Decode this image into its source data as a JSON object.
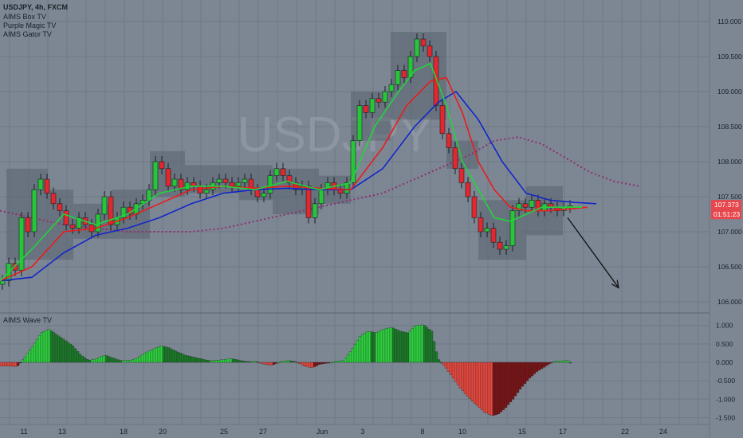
{
  "header": {
    "symbol_line": "USDJPY, 4h, FXCM",
    "indicators": [
      "AIMS Box TV",
      "Purple Magic TV",
      "AIMS Gator TV"
    ]
  },
  "watermark": "USDJPY",
  "lower_pane": {
    "title": "AIMS Wave TV"
  },
  "colors": {
    "background": "#7d8794",
    "up_candle": "#28c43a",
    "down_candle": "#e0282e",
    "gator_fast": "#22d43c",
    "gator_mid": "#e81c1c",
    "gator_slow": "#1226c8",
    "purple": "#8e2d6e",
    "box": "#5a636e",
    "wave_pos": "#2ed13e",
    "wave_neg": "#e5483e"
  },
  "price_badges": {
    "price": "107.373",
    "timer": "01:51:23",
    "bg": "#e8454c"
  },
  "chart_data": [
    {
      "type": "candlestick",
      "title": "",
      "y_ticks": [
        110.0,
        109.5,
        109.0,
        108.5,
        108.0,
        107.5,
        107.0,
        106.5,
        106.0
      ],
      "y_tick_labels": [
        "110.000",
        "109.500",
        "109.000",
        "108.500",
        "108.000",
        "107.500",
        "107.000",
        "106.500",
        "106.000"
      ],
      "ylim": [
        105.85,
        110.15
      ],
      "x_tick_labels": [
        "11",
        "13",
        "18",
        "20",
        "25",
        "27",
        "Jun",
        "3",
        "8",
        "10",
        "15",
        "17",
        "22",
        "24"
      ],
      "current_price": 107.373,
      "candles_close_path": [
        [
          0,
          106.3
        ],
        [
          8,
          106.55
        ],
        [
          16,
          106.45
        ],
        [
          24,
          107.2
        ],
        [
          32,
          107.0
        ],
        [
          40,
          107.6
        ],
        [
          48,
          107.75
        ],
        [
          56,
          107.55
        ],
        [
          64,
          107.4
        ],
        [
          72,
          107.3
        ],
        [
          80,
          107.1
        ],
        [
          88,
          107.05
        ],
        [
          96,
          107.2
        ],
        [
          104,
          107.1
        ],
        [
          112,
          107.0
        ],
        [
          120,
          107.25
        ],
        [
          128,
          107.5
        ],
        [
          136,
          107.1
        ],
        [
          144,
          107.2
        ],
        [
          152,
          107.35
        ],
        [
          160,
          107.25
        ],
        [
          168,
          107.4
        ],
        [
          176,
          107.45
        ],
        [
          184,
          107.6
        ],
        [
          192,
          108.0
        ],
        [
          200,
          107.9
        ],
        [
          208,
          107.65
        ],
        [
          216,
          107.75
        ],
        [
          224,
          107.6
        ],
        [
          232,
          107.7
        ],
        [
          240,
          107.65
        ],
        [
          248,
          107.55
        ],
        [
          256,
          107.6
        ],
        [
          264,
          107.7
        ],
        [
          272,
          107.75
        ],
        [
          280,
          107.7
        ],
        [
          288,
          107.65
        ],
        [
          296,
          107.7
        ],
        [
          304,
          107.75
        ],
        [
          312,
          107.6
        ],
        [
          320,
          107.5
        ],
        [
          328,
          107.55
        ],
        [
          336,
          107.8
        ],
        [
          344,
          107.9
        ],
        [
          352,
          107.8
        ],
        [
          360,
          107.7
        ],
        [
          368,
          107.6
        ],
        [
          376,
          107.65
        ],
        [
          384,
          107.2
        ],
        [
          392,
          107.4
        ],
        [
          400,
          107.6
        ],
        [
          408,
          107.7
        ],
        [
          416,
          107.6
        ],
        [
          424,
          107.55
        ],
        [
          432,
          107.7
        ],
        [
          440,
          108.3
        ],
        [
          448,
          108.8
        ],
        [
          456,
          108.7
        ],
        [
          464,
          108.9
        ],
        [
          472,
          108.85
        ],
        [
          480,
          109.0
        ],
        [
          488,
          109.1
        ],
        [
          496,
          109.3
        ],
        [
          504,
          109.2
        ],
        [
          512,
          109.5
        ],
        [
          520,
          109.75
        ],
        [
          528,
          109.65
        ],
        [
          536,
          109.5
        ],
        [
          544,
          108.8
        ],
        [
          552,
          108.4
        ],
        [
          560,
          108.2
        ],
        [
          568,
          107.9
        ],
        [
          576,
          107.7
        ],
        [
          584,
          107.5
        ],
        [
          592,
          107.2
        ],
        [
          600,
          107.0
        ],
        [
          608,
          107.05
        ],
        [
          616,
          106.85
        ],
        [
          624,
          106.75
        ],
        [
          632,
          106.8
        ],
        [
          640,
          107.3
        ],
        [
          648,
          107.4
        ],
        [
          656,
          107.35
        ],
        [
          664,
          107.45
        ],
        [
          672,
          107.3
        ],
        [
          680,
          107.4
        ],
        [
          688,
          107.35
        ],
        [
          696,
          107.3
        ],
        [
          704,
          107.35
        ],
        [
          712,
          107.373
        ]
      ],
      "gator_fast": [
        [
          0,
          106.3
        ],
        [
          40,
          106.75
        ],
        [
          80,
          107.25
        ],
        [
          120,
          107.1
        ],
        [
          160,
          107.25
        ],
        [
          200,
          107.55
        ],
        [
          240,
          107.65
        ],
        [
          280,
          107.65
        ],
        [
          320,
          107.6
        ],
        [
          360,
          107.72
        ],
        [
          400,
          107.6
        ],
        [
          440,
          107.7
        ],
        [
          470,
          108.5
        ],
        [
          500,
          109.0
        ],
        [
          520,
          109.3
        ],
        [
          540,
          109.4
        ],
        [
          560,
          108.8
        ],
        [
          580,
          108.0
        ],
        [
          600,
          107.6
        ],
        [
          620,
          107.2
        ],
        [
          640,
          107.15
        ],
        [
          660,
          107.25
        ],
        [
          680,
          107.35
        ],
        [
          700,
          107.35
        ],
        [
          730,
          107.35
        ]
      ],
      "gator_mid": [
        [
          0,
          106.3
        ],
        [
          40,
          106.5
        ],
        [
          80,
          107.0
        ],
        [
          120,
          107.05
        ],
        [
          160,
          107.2
        ],
        [
          200,
          107.4
        ],
        [
          240,
          107.6
        ],
        [
          280,
          107.65
        ],
        [
          320,
          107.62
        ],
        [
          360,
          107.65
        ],
        [
          400,
          107.62
        ],
        [
          440,
          107.6
        ],
        [
          480,
          108.2
        ],
        [
          510,
          108.8
        ],
        [
          540,
          109.15
        ],
        [
          560,
          109.2
        ],
        [
          580,
          108.7
        ],
        [
          600,
          108.0
        ],
        [
          620,
          107.6
        ],
        [
          640,
          107.35
        ],
        [
          660,
          107.3
        ],
        [
          690,
          107.3
        ],
        [
          710,
          107.32
        ],
        [
          737,
          107.35
        ]
      ],
      "gator_slow": [
        [
          0,
          106.3
        ],
        [
          40,
          106.35
        ],
        [
          80,
          106.7
        ],
        [
          120,
          106.95
        ],
        [
          160,
          107.05
        ],
        [
          200,
          107.2
        ],
        [
          240,
          107.4
        ],
        [
          280,
          107.55
        ],
        [
          320,
          107.6
        ],
        [
          360,
          107.62
        ],
        [
          400,
          107.6
        ],
        [
          440,
          107.6
        ],
        [
          480,
          107.9
        ],
        [
          520,
          108.5
        ],
        [
          550,
          108.85
        ],
        [
          572,
          109.0
        ],
        [
          600,
          108.6
        ],
        [
          630,
          108.0
        ],
        [
          660,
          107.55
        ],
        [
          690,
          107.45
        ],
        [
          720,
          107.42
        ],
        [
          748,
          107.4
        ]
      ],
      "purple_line": [
        [
          0,
          107.3
        ],
        [
          40,
          107.2
        ],
        [
          80,
          107.1
        ],
        [
          120,
          107.05
        ],
        [
          160,
          107.0
        ],
        [
          200,
          107.0
        ],
        [
          240,
          107.0
        ],
        [
          280,
          107.05
        ],
        [
          320,
          107.15
        ],
        [
          360,
          107.25
        ],
        [
          400,
          107.35
        ],
        [
          440,
          107.45
        ],
        [
          480,
          107.55
        ],
        [
          520,
          107.75
        ],
        [
          560,
          107.95
        ],
        [
          590,
          108.1
        ],
        [
          620,
          108.3
        ],
        [
          650,
          108.35
        ],
        [
          680,
          108.25
        ],
        [
          710,
          108.05
        ],
        [
          740,
          107.85
        ],
        [
          770,
          107.72
        ],
        [
          802,
          107.65
        ]
      ],
      "boxes": [
        [
          8,
          60,
          106.6,
          107.9
        ],
        [
          60,
          92,
          106.6,
          107.6
        ],
        [
          92,
          140,
          106.9,
          107.4
        ],
        [
          140,
          188,
          106.9,
          107.6
        ],
        [
          188,
          232,
          107.5,
          108.15
        ],
        [
          232,
          300,
          107.55,
          107.95
        ],
        [
          300,
          342,
          107.45,
          107.95
        ],
        [
          342,
          400,
          107.25,
          107.9
        ],
        [
          400,
          440,
          107.4,
          107.8
        ],
        [
          440,
          490,
          108.3,
          109.0
        ],
        [
          490,
          560,
          108.6,
          109.85
        ],
        [
          560,
          600,
          107.9,
          108.3
        ],
        [
          600,
          660,
          106.6,
          107.45
        ],
        [
          660,
          706,
          106.95,
          107.65
        ]
      ],
      "arrow": {
        "from": [
          712,
          107.2
        ],
        "to": [
          776,
          106.2
        ]
      }
    },
    {
      "type": "bar",
      "title": "AIMS Wave TV",
      "y_ticks": [
        1.0,
        0.5,
        0.0,
        -0.5,
        -1.0,
        -1.5
      ],
      "y_tick_labels": [
        "1.000",
        "0.500",
        "0.000",
        "-0.500",
        "-1.000",
        "-1.500"
      ],
      "ylim": [
        -1.65,
        1.15
      ],
      "wave_envelope": [
        [
          0,
          -0.1
        ],
        [
          10,
          -0.1
        ],
        [
          20,
          -0.12
        ],
        [
          30,
          0.15
        ],
        [
          40,
          0.45
        ],
        [
          50,
          0.8
        ],
        [
          60,
          0.9
        ],
        [
          70,
          0.75
        ],
        [
          80,
          0.6
        ],
        [
          90,
          0.45
        ],
        [
          100,
          0.2
        ],
        [
          110,
          0.05
        ],
        [
          120,
          0.1
        ],
        [
          130,
          0.2
        ],
        [
          140,
          0.12
        ],
        [
          150,
          0.05
        ],
        [
          160,
          0.05
        ],
        [
          170,
          0.1
        ],
        [
          180,
          0.25
        ],
        [
          190,
          0.35
        ],
        [
          200,
          0.45
        ],
        [
          210,
          0.4
        ],
        [
          220,
          0.3
        ],
        [
          230,
          0.2
        ],
        [
          240,
          0.15
        ],
        [
          250,
          0.1
        ],
        [
          260,
          0.05
        ],
        [
          270,
          0.05
        ],
        [
          280,
          0.08
        ],
        [
          290,
          0.1
        ],
        [
          300,
          0.05
        ],
        [
          310,
          0.02
        ],
        [
          320,
          0.03
        ],
        [
          330,
          -0.05
        ],
        [
          340,
          -0.08
        ],
        [
          350,
          0.02
        ],
        [
          360,
          0.05
        ],
        [
          370,
          0.02
        ],
        [
          380,
          -0.1
        ],
        [
          390,
          -0.15
        ],
        [
          400,
          -0.05
        ],
        [
          410,
          -0.02
        ],
        [
          420,
          0.03
        ],
        [
          430,
          0.05
        ],
        [
          440,
          0.35
        ],
        [
          450,
          0.7
        ],
        [
          460,
          0.85
        ],
        [
          470,
          0.8
        ],
        [
          480,
          0.9
        ],
        [
          490,
          0.95
        ],
        [
          500,
          0.85
        ],
        [
          510,
          0.8
        ],
        [
          520,
          1.0
        ],
        [
          530,
          1.02
        ],
        [
          540,
          0.85
        ],
        [
          548,
          0.1
        ],
        [
          556,
          -0.1
        ],
        [
          566,
          -0.4
        ],
        [
          576,
          -0.7
        ],
        [
          586,
          -0.95
        ],
        [
          596,
          -1.15
        ],
        [
          606,
          -1.35
        ],
        [
          616,
          -1.45
        ],
        [
          624,
          -1.4
        ],
        [
          632,
          -1.25
        ],
        [
          642,
          -1.0
        ],
        [
          652,
          -0.7
        ],
        [
          662,
          -0.45
        ],
        [
          672,
          -0.25
        ],
        [
          682,
          -0.12
        ],
        [
          692,
          0.02
        ],
        [
          702,
          0.04
        ],
        [
          712,
          0.05
        ]
      ]
    }
  ]
}
